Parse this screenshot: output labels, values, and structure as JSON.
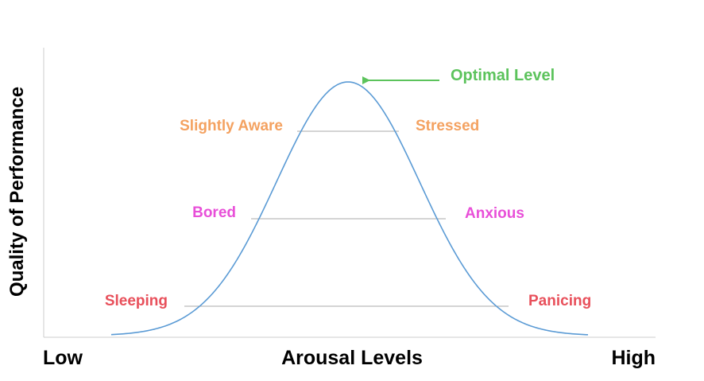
{
  "axes": {
    "y_label": "Quality of Performance",
    "x_label": "Arousal Levels",
    "x_low": "Low",
    "x_high": "High"
  },
  "peak_label": "Optimal Level",
  "levels": [
    {
      "left": "Slightly Aware",
      "right": "Stressed",
      "color": "#f4a261"
    },
    {
      "left": "Bored",
      "right": "Anxious",
      "color": "#e84fd8"
    },
    {
      "left": "Sleeping",
      "right": "Panicing",
      "color": "#e8505b"
    }
  ],
  "colors": {
    "curve": "#5b9bd5",
    "level_line": "#8c8c8c",
    "axis": "#cccccc",
    "optimal": "#5cc35c",
    "axis_text": "#000000"
  }
}
